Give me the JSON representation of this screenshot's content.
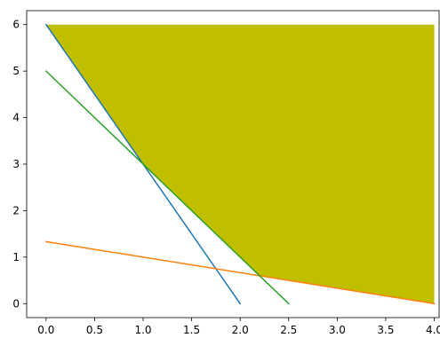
{
  "chart_data": {
    "type": "line",
    "title": "",
    "xlabel": "",
    "ylabel": "",
    "xlim": [
      -0.2,
      4.05
    ],
    "ylim": [
      -0.3,
      6.3
    ],
    "grid": false,
    "x_ticks": [
      "0.0",
      "0.5",
      "1.0",
      "1.5",
      "2.0",
      "2.5",
      "3.0",
      "3.5",
      "4.0"
    ],
    "y_ticks": [
      "0",
      "1",
      "2",
      "3",
      "4",
      "5",
      "6"
    ],
    "series": [
      {
        "color": "#1f77b4",
        "x": [
          0,
          2
        ],
        "y": [
          6,
          0
        ]
      },
      {
        "color": "#ff7f0e",
        "x": [
          0,
          4
        ],
        "y": [
          1.333,
          0
        ]
      },
      {
        "color": "#2ca02c",
        "x": [
          0,
          2.5
        ],
        "y": [
          5,
          0
        ]
      }
    ],
    "filled_region": {
      "color": "#bfbf00",
      "x": [
        0,
        1,
        2.2,
        4,
        4
      ],
      "y": [
        6,
        3,
        0.6,
        0,
        6
      ]
    }
  }
}
